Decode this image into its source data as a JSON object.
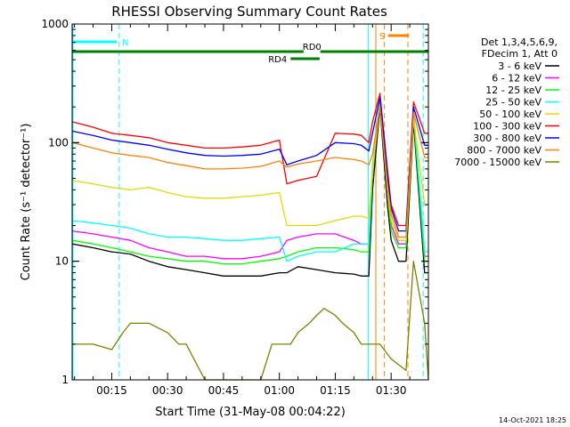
{
  "chart_data": {
    "type": "line",
    "title": "RHESSI Observing Summary Count Rates",
    "xlabel": "Start Time (31-May-08 00:04:22)",
    "ylabel": "Count Rate (s⁻¹ detector⁻¹)",
    "x_unit": "minutes after 00:00 UT, 31-May-2008",
    "xlim": [
      4.37,
      100.0
    ],
    "ylim": [
      1,
      1000
    ],
    "yscale": "log",
    "x_ticks": [
      {
        "label": "00:15",
        "value": 15
      },
      {
        "label": "00:30",
        "value": 30
      },
      {
        "label": "00:45",
        "value": 45
      },
      {
        "label": "01:00",
        "value": 60
      },
      {
        "label": "01:15",
        "value": 75
      },
      {
        "label": "01:30",
        "value": 90
      }
    ],
    "y_ticks": [
      {
        "label": "1",
        "value": 1
      },
      {
        "label": "10",
        "value": 10
      },
      {
        "label": "100",
        "value": 100
      },
      {
        "label": "1000",
        "value": 1000
      }
    ],
    "legend": {
      "placement": "right",
      "header": [
        "Det 1,3,4,5,6,9,",
        "FDecim 1, Att 0"
      ]
    },
    "series": [
      {
        "name": "3 - 6 keV",
        "color": "#000000",
        "x": [
          4.4,
          10,
          15,
          20,
          25,
          30,
          35,
          40,
          45,
          50,
          55,
          60,
          62,
          65,
          70,
          75,
          80,
          82,
          84,
          85,
          87,
          89,
          90,
          92,
          94,
          96,
          99,
          100
        ],
        "y": [
          14,
          13,
          12,
          11.5,
          10,
          9,
          8.5,
          8,
          7.5,
          7.5,
          7.5,
          8,
          8,
          9,
          8.5,
          8,
          7.8,
          7.5,
          7.5,
          40,
          200,
          30,
          15,
          10,
          10,
          150,
          8,
          8
        ]
      },
      {
        "name": "6 - 12 keV",
        "color": "#ff00ff",
        "x": [
          4.4,
          10,
          15,
          20,
          25,
          30,
          35,
          40,
          45,
          50,
          55,
          60,
          62,
          65,
          70,
          75,
          80,
          82,
          84,
          85,
          87,
          89,
          90,
          92,
          94,
          96,
          99,
          100
        ],
        "y": [
          18,
          17,
          16,
          15,
          13,
          12,
          11,
          11,
          10.5,
          10.5,
          11,
          12,
          15,
          16,
          17,
          17,
          15,
          14,
          14,
          60,
          230,
          45,
          20,
          14,
          14,
          180,
          11,
          11
        ]
      },
      {
        "name": "12 - 25 keV",
        "color": "#00ff00",
        "x": [
          4.4,
          10,
          15,
          20,
          25,
          30,
          35,
          40,
          45,
          50,
          55,
          60,
          62,
          65,
          70,
          75,
          80,
          82,
          84,
          85,
          87,
          89,
          90,
          92,
          94,
          96,
          99,
          100
        ],
        "y": [
          15,
          14,
          13,
          12,
          11,
          10.5,
          10,
          10,
          9.5,
          9.5,
          10,
          10.5,
          11,
          12,
          13,
          13,
          12.5,
          12,
          12,
          55,
          220,
          40,
          18,
          13,
          13,
          170,
          10,
          10
        ]
      },
      {
        "name": "25 - 50 keV",
        "color": "#00ffff",
        "x": [
          4.4,
          10,
          15,
          20,
          25,
          30,
          35,
          40,
          45,
          50,
          55,
          60,
          62,
          65,
          70,
          75,
          80,
          82,
          84,
          85,
          87,
          89,
          90,
          92,
          94,
          96,
          99,
          100
        ],
        "y": [
          22,
          21,
          20,
          19,
          17,
          16,
          16,
          15.5,
          15,
          15,
          15.5,
          16,
          10,
          11,
          12,
          12,
          14,
          14,
          14,
          65,
          240,
          50,
          22,
          15,
          15,
          190,
          12,
          12
        ]
      },
      {
        "name": "50 - 100 keV",
        "color": "#e6d800",
        "x": [
          4.4,
          10,
          15,
          20,
          25,
          30,
          35,
          40,
          45,
          50,
          55,
          60,
          62,
          65,
          70,
          75,
          80,
          82,
          84,
          85,
          87,
          89,
          90,
          92,
          94,
          96,
          99,
          100
        ],
        "y": [
          48,
          45,
          42,
          40,
          42,
          38,
          35,
          34,
          34,
          35,
          36,
          38,
          20,
          20,
          20,
          22,
          24,
          24,
          23,
          60,
          210,
          40,
          22,
          15,
          15,
          160,
          30,
          30
        ]
      },
      {
        "name": "100 - 300 keV",
        "color": "#ff0000",
        "x": [
          4.4,
          10,
          15,
          20,
          25,
          30,
          35,
          40,
          45,
          50,
          55,
          60,
          62,
          65,
          70,
          75,
          80,
          82,
          84,
          85,
          87,
          89,
          90,
          92,
          94,
          96,
          99,
          100
        ],
        "y": [
          150,
          135,
          120,
          115,
          110,
          100,
          95,
          90,
          90,
          92,
          95,
          105,
          45,
          48,
          52,
          120,
          118,
          115,
          100,
          150,
          260,
          60,
          30,
          20,
          20,
          220,
          120,
          120
        ]
      },
      {
        "name": "300 - 800 keV",
        "color": "#0000ff",
        "x": [
          4.4,
          10,
          15,
          20,
          25,
          30,
          35,
          40,
          45,
          50,
          55,
          60,
          62,
          65,
          70,
          75,
          80,
          82,
          84,
          85,
          87,
          89,
          90,
          92,
          94,
          96,
          99,
          100
        ],
        "y": [
          125,
          115,
          105,
          100,
          95,
          88,
          82,
          78,
          77,
          78,
          80,
          88,
          65,
          70,
          78,
          100,
          98,
          95,
          85,
          120,
          240,
          55,
          28,
          18,
          18,
          200,
          95,
          95
        ]
      },
      {
        "name": "800 - 7000 keV",
        "color": "#ff8000",
        "x": [
          4.4,
          10,
          15,
          20,
          25,
          30,
          35,
          40,
          45,
          50,
          55,
          60,
          62,
          65,
          70,
          75,
          80,
          82,
          84,
          85,
          87,
          89,
          90,
          92,
          94,
          96,
          99,
          100
        ],
        "y": [
          100,
          90,
          82,
          78,
          75,
          68,
          64,
          60,
          60,
          61,
          63,
          70,
          62,
          66,
          70,
          75,
          72,
          70,
          65,
          80,
          200,
          45,
          25,
          16,
          16,
          180,
          75,
          75
        ]
      },
      {
        "name": "7000 - 15000 keV",
        "color": "#808000",
        "x": [
          4.4,
          10,
          15,
          18,
          20,
          25,
          30,
          33,
          35,
          40,
          45,
          50,
          55,
          58,
          60,
          63,
          65,
          68,
          70,
          72,
          75,
          77,
          80,
          82,
          85,
          87,
          90,
          94,
          96,
          99,
          100
        ],
        "y": [
          2,
          2,
          1.8,
          2.5,
          3,
          3,
          2.5,
          2,
          2,
          1,
          1,
          1,
          1,
          2,
          2,
          2,
          2.5,
          3,
          3.5,
          4,
          3.5,
          3,
          2.5,
          2,
          2,
          2,
          1.5,
          1.2,
          10,
          3,
          1
        ]
      }
    ],
    "annotations": [
      {
        "label": "N",
        "color": "#00ffff",
        "kind": "night",
        "x_start": 4.4,
        "x_end": 16.3
      },
      {
        "label": "S",
        "color": "#ff8000",
        "kind": "saa",
        "x_start": 89.2,
        "x_end": 94.8
      },
      {
        "label": "RD0",
        "color": "#008000",
        "kind": "decimation",
        "x_start": 4.4,
        "x_end": 100.0,
        "gap_start": 66.5,
        "gap_end": 71.0
      },
      {
        "label": "RD4",
        "color": "#008000",
        "kind": "decimation",
        "x_start": 63.0,
        "x_end": 70.8
      }
    ],
    "vertical_markers": [
      {
        "color": "#00ffff",
        "style": "solid",
        "x": 4.6
      },
      {
        "color": "#00ffff",
        "style": "dashed",
        "x": 17.0
      },
      {
        "color": "#00ffff",
        "style": "solid",
        "x": 83.9
      },
      {
        "color": "#00ffff",
        "style": "dashed",
        "x": 98.6
      },
      {
        "color": "#ff8000",
        "style": "solid",
        "x": 85.9
      },
      {
        "color": "#ff8000",
        "style": "dashed",
        "x": 88.2
      },
      {
        "color": "#ff8000",
        "style": "dashed",
        "x": 94.5
      }
    ]
  },
  "footer_timestamp": "14-Oct-2021 18:25"
}
